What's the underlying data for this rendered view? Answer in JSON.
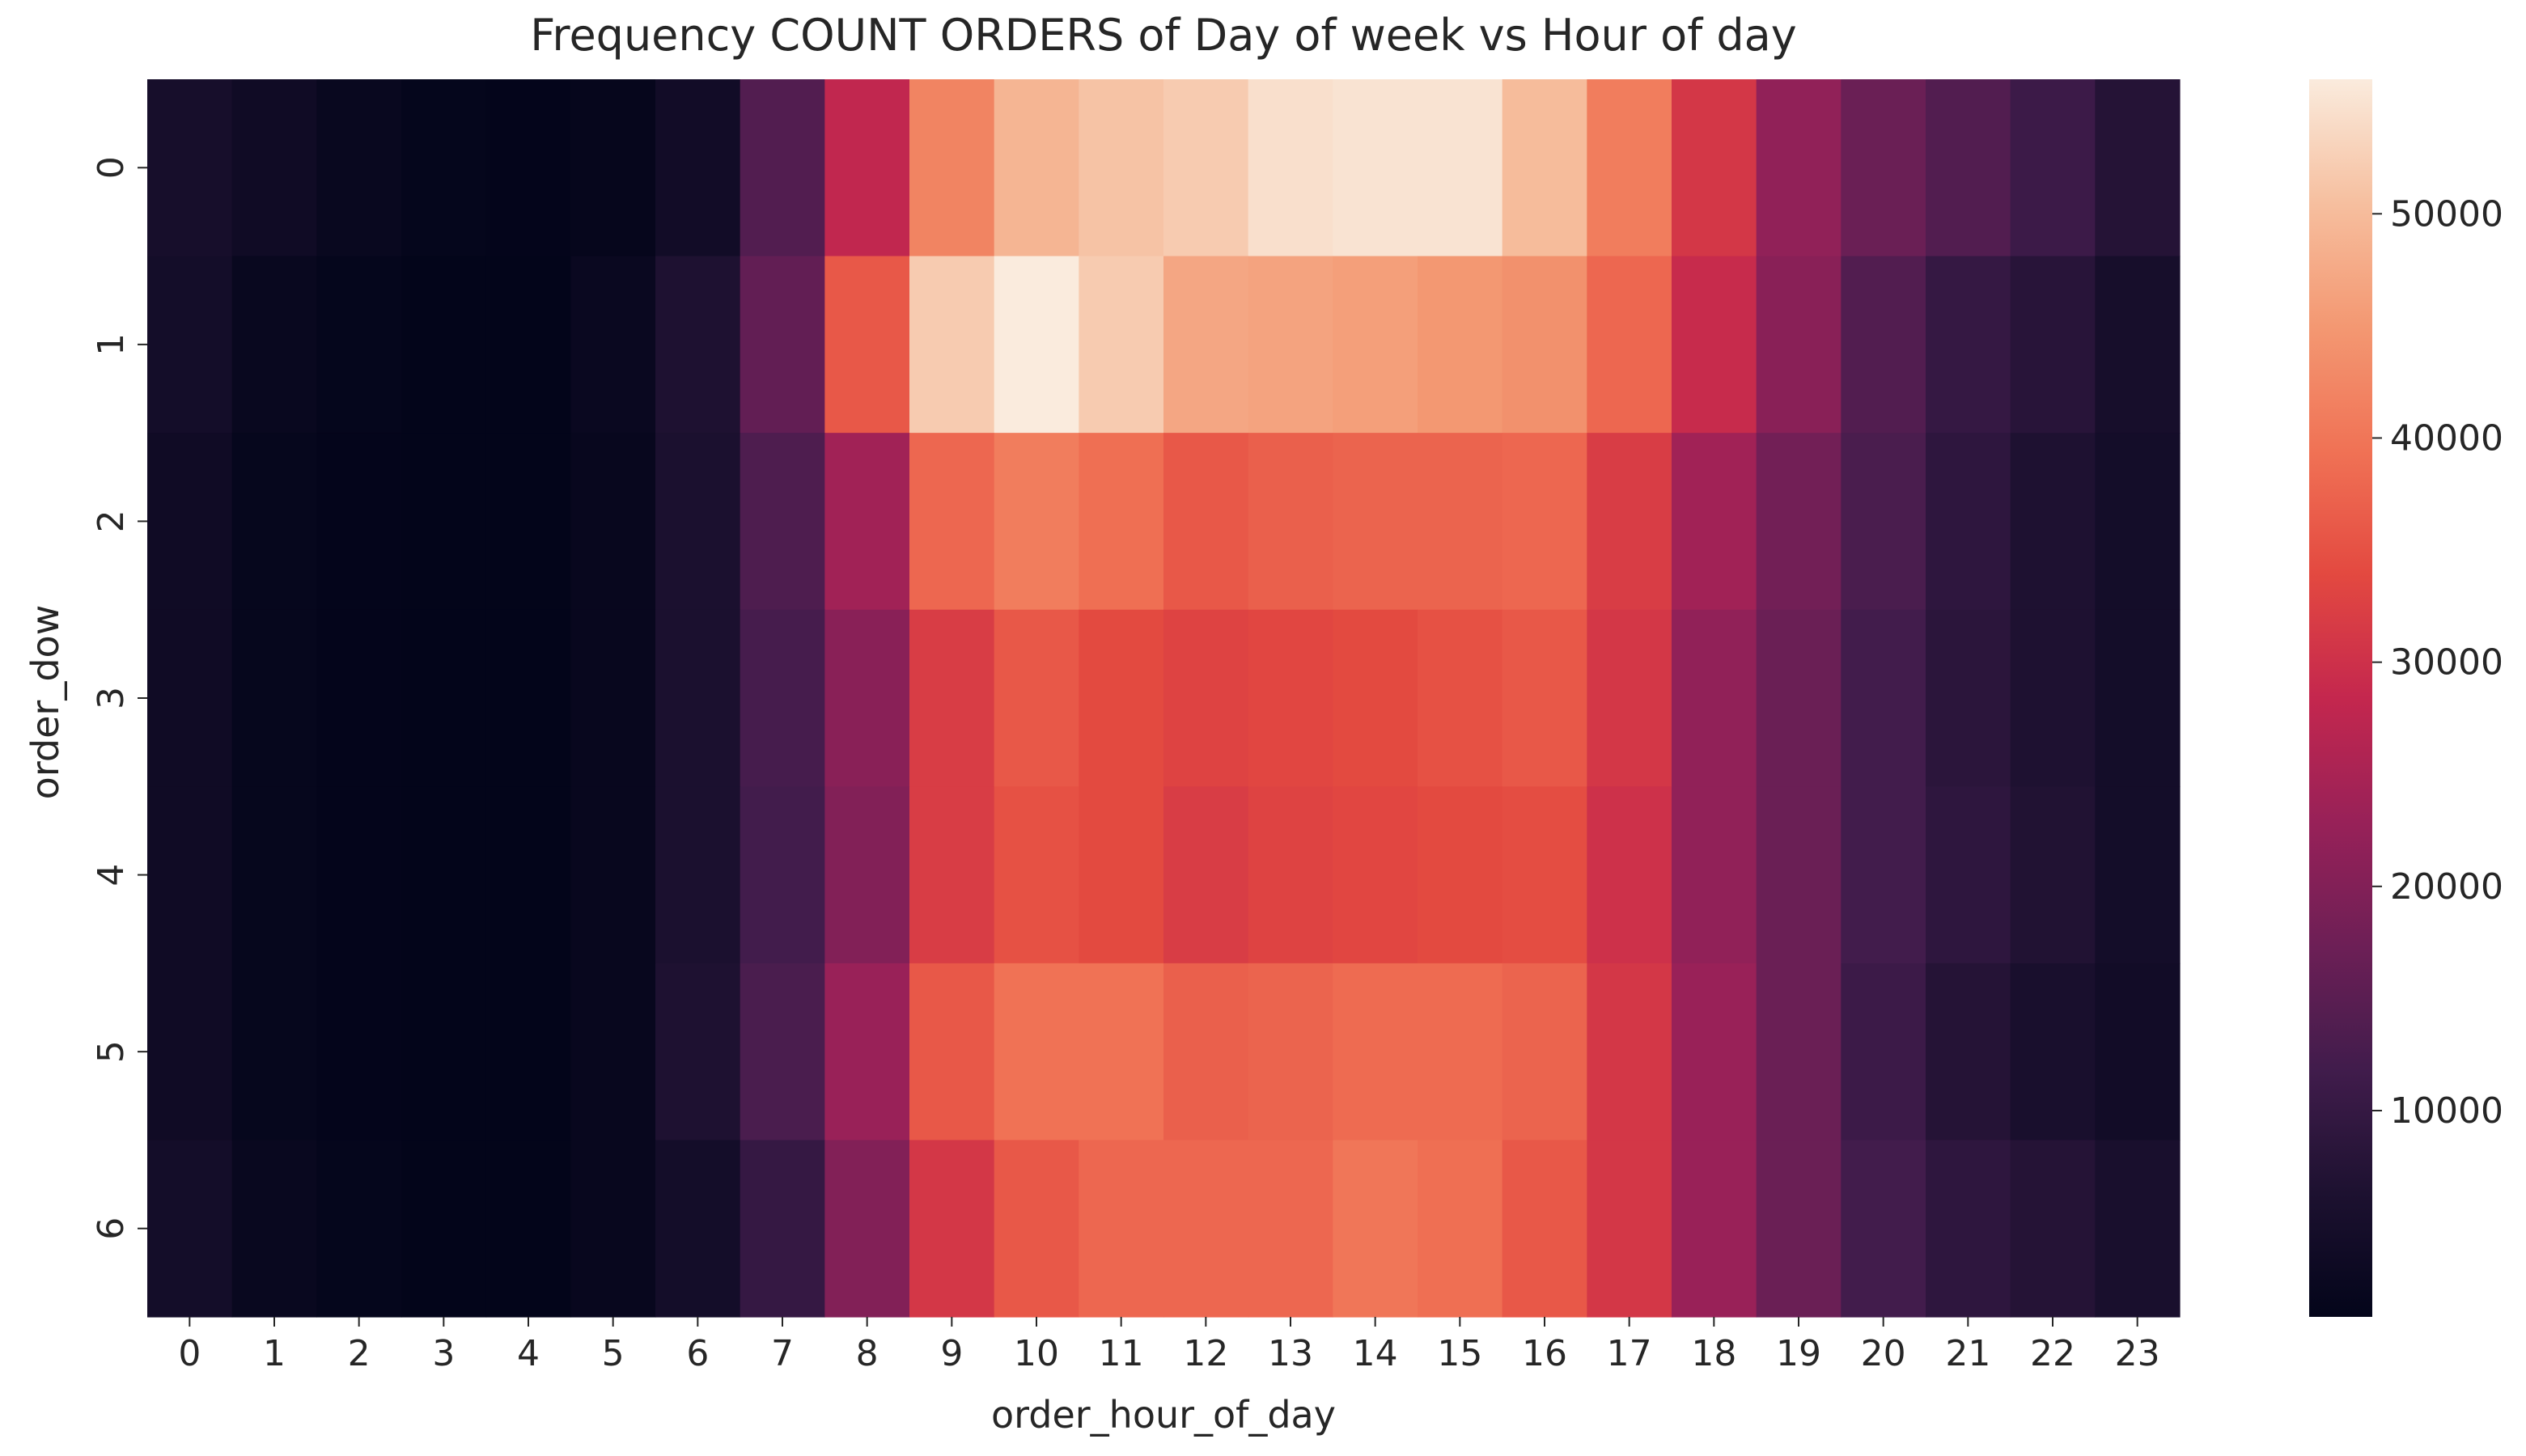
{
  "chart_data": {
    "type": "heatmap",
    "title": "Frequency COUNT ORDERS of Day of week vs Hour of day",
    "xlabel": "order_hour_of_day",
    "ylabel": "order_dow",
    "x": [
      "0",
      "1",
      "2",
      "3",
      "4",
      "5",
      "6",
      "7",
      "8",
      "9",
      "10",
      "11",
      "12",
      "13",
      "14",
      "15",
      "16",
      "17",
      "18",
      "19",
      "20",
      "21",
      "22",
      "23"
    ],
    "y": [
      "0",
      "1",
      "2",
      "3",
      "4",
      "5",
      "6"
    ],
    "values": [
      [
        5000,
        3500,
        2000,
        1200,
        1000,
        1400,
        4000,
        14000,
        28000,
        42000,
        49000,
        51000,
        52000,
        54500,
        55000,
        55000,
        50000,
        41000,
        31000,
        22000,
        17000,
        14000,
        11000,
        7500
      ],
      [
        4500,
        2000,
        1200,
        900,
        900,
        2200,
        6500,
        16000,
        36000,
        52000,
        56000,
        52000,
        47000,
        46500,
        46000,
        45000,
        44000,
        38000,
        29000,
        21000,
        14000,
        10000,
        8000,
        5000
      ],
      [
        3500,
        1500,
        1000,
        800,
        900,
        1800,
        6000,
        13500,
        24000,
        38000,
        41000,
        39000,
        36000,
        37000,
        37500,
        37500,
        38000,
        32000,
        24000,
        18000,
        13000,
        9000,
        6500,
        4500
      ],
      [
        3500,
        1500,
        1000,
        800,
        900,
        1800,
        6000,
        12500,
        21000,
        32000,
        36000,
        34000,
        33000,
        33500,
        34000,
        35000,
        36000,
        31000,
        22000,
        17000,
        12000,
        8500,
        6500,
        4500
      ],
      [
        3500,
        1500,
        1000,
        800,
        900,
        1800,
        6000,
        12000,
        20000,
        32000,
        35000,
        34000,
        32000,
        33000,
        33500,
        34000,
        34500,
        30000,
        22000,
        17000,
        12000,
        9000,
        7000,
        4500
      ],
      [
        3500,
        1500,
        1000,
        800,
        900,
        1800,
        6500,
        13000,
        23000,
        36000,
        39500,
        39500,
        37000,
        37500,
        38500,
        38500,
        37500,
        31000,
        23000,
        17000,
        11000,
        7500,
        5500,
        4000
      ],
      [
        4500,
        2000,
        1300,
        900,
        900,
        1800,
        4500,
        10000,
        20000,
        31000,
        36000,
        38000,
        38000,
        38000,
        40000,
        39000,
        36000,
        31000,
        23000,
        17000,
        12000,
        9000,
        7500,
        5500
      ]
    ],
    "vmin": 800,
    "vmax": 56000,
    "colorbar_ticks": [
      10000,
      20000,
      30000,
      40000,
      50000
    ],
    "colormap": "rocket",
    "grid": false
  }
}
